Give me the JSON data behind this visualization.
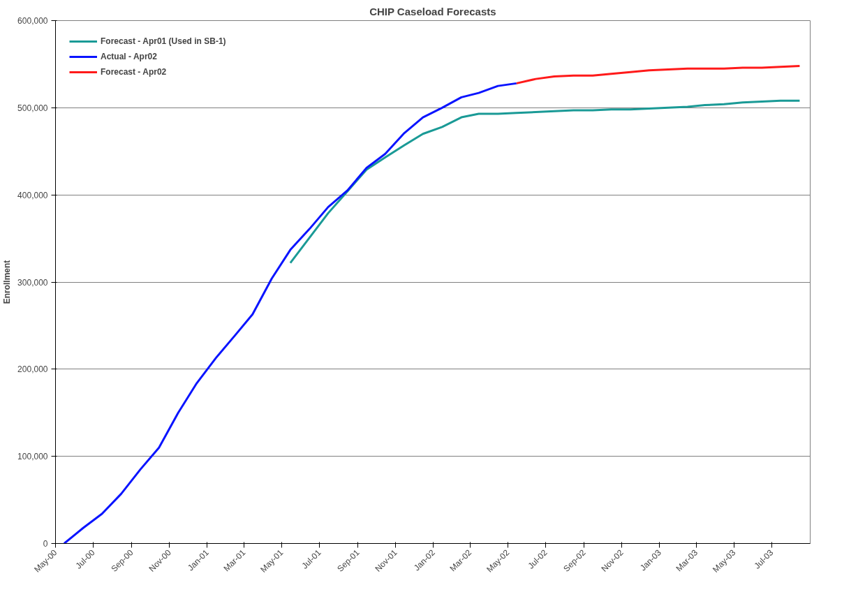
{
  "chart_data": {
    "type": "line",
    "title": "CHIP Caseload Forecasts",
    "ylabel": "Enrollment",
    "x": [
      "2000-05-15",
      "2000-06-15",
      "2000-07-15",
      "2000-08-15",
      "2000-09-15",
      "2000-10-15",
      "2000-11-15",
      "2000-12-15",
      "2001-01-15",
      "2001-02-15",
      "2001-03-15",
      "2001-04-15",
      "2001-05-15",
      "2001-06-15",
      "2001-07-15",
      "2001-08-15",
      "2001-09-15",
      "2001-10-15",
      "2001-11-15",
      "2001-12-15",
      "2002-01-15",
      "2002-02-15",
      "2002-03-15",
      "2002-04-15",
      "2002-05-15",
      "2002-06-15",
      "2002-07-15",
      "2002-08-15",
      "2002-09-15",
      "2002-10-15",
      "2002-11-15",
      "2002-12-15",
      "2003-01-15",
      "2003-02-15",
      "2003-03-15",
      "2003-04-15",
      "2003-05-15",
      "2003-06-15",
      "2003-07-15",
      "2003-08-15"
    ],
    "series": [
      {
        "name": "Forecast - Apr01 (Used in SB-1)",
        "color": "#1a9a96",
        "values": [
          null,
          null,
          null,
          null,
          null,
          null,
          null,
          null,
          null,
          null,
          null,
          null,
          322000,
          351000,
          379000,
          404000,
          429000,
          443000,
          457000,
          470000,
          478000,
          489000,
          493000,
          493000,
          494000,
          495000,
          496000,
          497000,
          497000,
          498000,
          498000,
          499000,
          500000,
          501000,
          503000,
          504000,
          506000,
          507000,
          508000,
          508000
        ]
      },
      {
        "name": "Actual - Apr02",
        "color": "#0a14ff",
        "values": [
          0,
          18000,
          34000,
          57000,
          85000,
          110000,
          150000,
          184000,
          213000,
          239000,
          263000,
          304000,
          337000,
          361000,
          386000,
          405000,
          431000,
          447000,
          471000,
          489000,
          500000,
          512000,
          517000,
          525000,
          528000,
          null,
          null,
          null,
          null,
          null,
          null,
          null,
          null,
          null,
          null,
          null,
          null,
          null,
          null,
          null
        ]
      },
      {
        "name": "Forecast - Apr02",
        "color": "#ff1a1a",
        "values": [
          null,
          null,
          null,
          null,
          null,
          null,
          null,
          null,
          null,
          null,
          null,
          null,
          null,
          null,
          null,
          null,
          null,
          null,
          null,
          null,
          null,
          null,
          null,
          null,
          528000,
          533000,
          536000,
          537000,
          537000,
          539000,
          541000,
          543000,
          544000,
          545000,
          545000,
          545000,
          546000,
          546000,
          547000,
          548000
        ]
      }
    ],
    "xlim": [
      "2000-05-01",
      "2003-09-01"
    ],
    "xticks": [
      {
        "value": "2000-05-01",
        "label": "May-00"
      },
      {
        "value": "2000-07-01",
        "label": "Jul-00"
      },
      {
        "value": "2000-09-01",
        "label": "Sep-00"
      },
      {
        "value": "2000-11-01",
        "label": "Nov-00"
      },
      {
        "value": "2001-01-01",
        "label": "Jan-01"
      },
      {
        "value": "2001-03-01",
        "label": "Mar-01"
      },
      {
        "value": "2001-05-01",
        "label": "May-01"
      },
      {
        "value": "2001-07-01",
        "label": "Jul-01"
      },
      {
        "value": "2001-09-01",
        "label": "Sep-01"
      },
      {
        "value": "2001-11-01",
        "label": "Nov-01"
      },
      {
        "value": "2002-01-01",
        "label": "Jan-02"
      },
      {
        "value": "2002-03-01",
        "label": "Mar-02"
      },
      {
        "value": "2002-05-01",
        "label": "May-02"
      },
      {
        "value": "2002-07-01",
        "label": "Jul-02"
      },
      {
        "value": "2002-09-01",
        "label": "Sep-02"
      },
      {
        "value": "2002-11-01",
        "label": "Nov-02"
      },
      {
        "value": "2003-01-01",
        "label": "Jan-03"
      },
      {
        "value": "2003-03-01",
        "label": "Mar-03"
      },
      {
        "value": "2003-05-01",
        "label": "May-03"
      },
      {
        "value": "2003-07-01",
        "label": "Jul-03"
      }
    ],
    "ylim": [
      0,
      600000
    ],
    "yticks": [
      0,
      {
        "value": 100000,
        "label": "100,000"
      },
      {
        "value": 200000,
        "label": "200,000"
      },
      {
        "value": 300000,
        "label": "300,000"
      },
      {
        "value": 400000,
        "label": "400,000"
      },
      {
        "value": 500000,
        "label": "500,000"
      },
      {
        "value": 600000,
        "label": "600,000"
      }
    ],
    "grid": "y",
    "legend": "top left",
    "marker": "none",
    "line_style": "solid"
  }
}
